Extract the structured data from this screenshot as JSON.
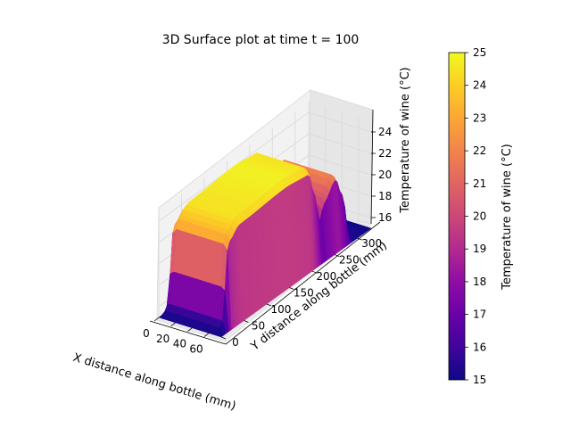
{
  "chart_data": {
    "type": "surface3d",
    "title": "3D Surface plot at time t = 100",
    "xlabel": "X distance along bottle (mm)",
    "ylabel": "Y distance along bottle (mm)",
    "zlabel": "Temperature of wine (°C)",
    "x_ticks": [
      "0",
      "20",
      "40",
      "60"
    ],
    "y_ticks": [
      "0",
      "50",
      "100",
      "150",
      "200",
      "250",
      "300"
    ],
    "z_ticks": [
      "16",
      "18",
      "20",
      "22",
      "24"
    ],
    "xlim": [
      0,
      75
    ],
    "ylim": [
      0,
      330
    ],
    "zlim": [
      15,
      25
    ],
    "colormap": "plasma",
    "colorbar": {
      "label": "Temperature of wine (°C)",
      "min": 15,
      "max": 25,
      "ticks": [
        "15",
        "16",
        "17",
        "18",
        "19",
        "20",
        "21",
        "22",
        "23",
        "24",
        "25"
      ]
    },
    "surface_profile": {
      "description_values_along_y": [
        {
          "y": 0,
          "z": 15
        },
        {
          "y": 10,
          "z": 16
        },
        {
          "y": 25,
          "z": 23.5
        },
        {
          "y": 50,
          "z": 24.5
        },
        {
          "y": 150,
          "z": 24.8
        },
        {
          "y": 200,
          "z": 24.5
        },
        {
          "y": 215,
          "z": 22
        },
        {
          "y": 225,
          "z": 19
        },
        {
          "y": 235,
          "z": 20.5
        },
        {
          "y": 260,
          "z": 22
        },
        {
          "y": 275,
          "z": 20
        },
        {
          "y": 290,
          "z": 15.5
        },
        {
          "y": 330,
          "z": 15
        }
      ]
    },
    "grid": true
  }
}
